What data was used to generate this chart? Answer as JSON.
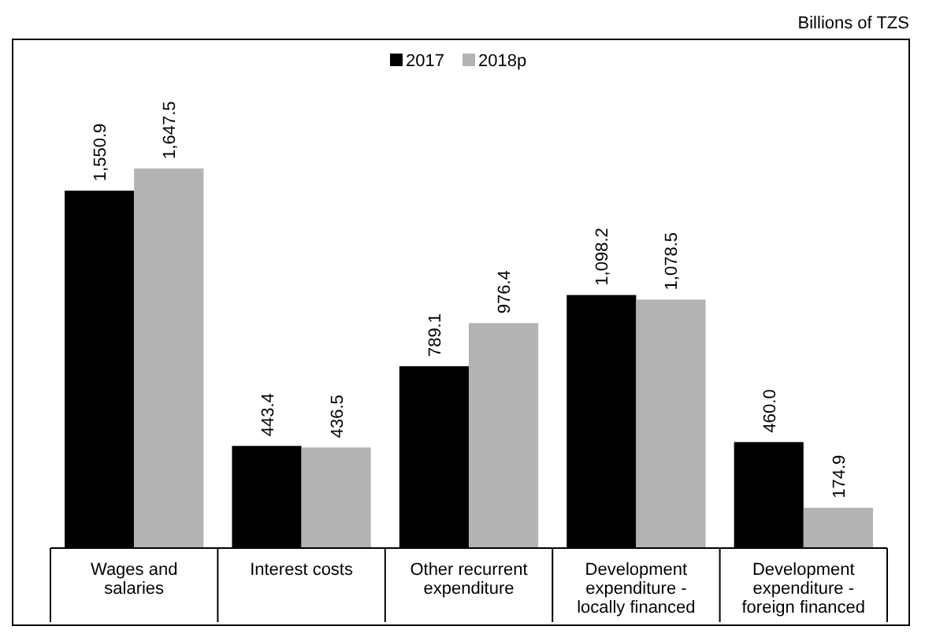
{
  "chart_data": {
    "type": "bar",
    "annotations": [
      "Billions of TZS"
    ],
    "categories": [
      "Wages and salaries",
      "Interest costs",
      "Other recurrent expenditure",
      "Development expenditure - locally financed",
      "Development expenditure - foreign financed"
    ],
    "series": [
      {
        "name": "2017",
        "color": "#000000",
        "values": [
          1550.9,
          443.4,
          789.1,
          1098.2,
          460.0
        ],
        "value_labels": [
          "1,550.9",
          "443.4",
          "789.1",
          "1,098.2",
          "460.0"
        ]
      },
      {
        "name": "2018p",
        "color": "#b3b3b3",
        "values": [
          1647.5,
          436.5,
          976.4,
          1078.5,
          174.9
        ],
        "value_labels": [
          "1,647.5",
          "436.5",
          "976.4",
          "1,078.5",
          "174.9"
        ]
      }
    ],
    "legend": "top"
  }
}
